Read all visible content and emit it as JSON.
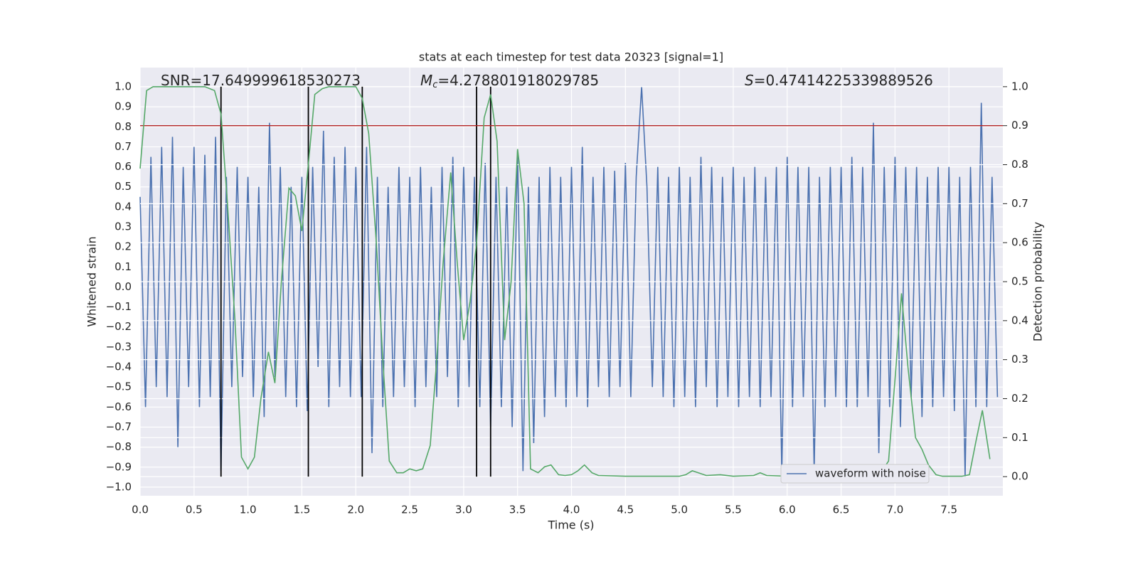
{
  "chart_data": {
    "type": "line",
    "title": "stats at each timestep for test data 20323 [signal=1]",
    "xlabel": "Time (s)",
    "ylabel": "Whitened strain",
    "y2label": "Detection probability",
    "annotations": [
      {
        "text": "SNR=17.649999618530273"
      },
      {
        "symbol": "M",
        "sub": "c",
        "text": "=4.278801918029785"
      },
      {
        "symbol": "S",
        "text": "=0.47414225339889526"
      }
    ],
    "xlim": [
      0,
      8.0
    ],
    "ylim": [
      -1.043,
      1.096
    ],
    "y2lim": [
      -0.049,
      1.049
    ],
    "xticks": [
      {
        "value": 0,
        "label": "0.0"
      },
      {
        "value": 0.5,
        "label": "0.5"
      },
      {
        "value": 1,
        "label": "1.0"
      },
      {
        "value": 1.5,
        "label": "1.5"
      },
      {
        "value": 2,
        "label": "2.0"
      },
      {
        "value": 2.5,
        "label": "2.5"
      },
      {
        "value": 3,
        "label": "3.0"
      },
      {
        "value": 3.5,
        "label": "3.5"
      },
      {
        "value": 4,
        "label": "4.0"
      },
      {
        "value": 4.5,
        "label": "4.5"
      },
      {
        "value": 5,
        "label": "5.0"
      },
      {
        "value": 5.5,
        "label": "5.5"
      },
      {
        "value": 6,
        "label": "6.0"
      },
      {
        "value": 6.5,
        "label": "6.5"
      },
      {
        "value": 7,
        "label": "7.0"
      },
      {
        "value": 7.5,
        "label": "7.5"
      }
    ],
    "yticks": [
      {
        "value": -1,
        "label": "−1.0"
      },
      {
        "value": -0.9,
        "label": "−0.9"
      },
      {
        "value": -0.8,
        "label": "−0.8"
      },
      {
        "value": -0.7,
        "label": "−0.7"
      },
      {
        "value": -0.6,
        "label": "−0.6"
      },
      {
        "value": -0.5,
        "label": "−0.5"
      },
      {
        "value": -0.4,
        "label": "−0.4"
      },
      {
        "value": -0.3,
        "label": "−0.3"
      },
      {
        "value": -0.2,
        "label": "−0.2"
      },
      {
        "value": -0.1,
        "label": "−0.1"
      },
      {
        "value": 0,
        "label": "0.0"
      },
      {
        "value": 0.1,
        "label": "0.1"
      },
      {
        "value": 0.2,
        "label": "0.2"
      },
      {
        "value": 0.3,
        "label": "0.3"
      },
      {
        "value": 0.4,
        "label": "0.4"
      },
      {
        "value": 0.5,
        "label": "0.5"
      },
      {
        "value": 0.6,
        "label": "0.6"
      },
      {
        "value": 0.7,
        "label": "0.7"
      },
      {
        "value": 0.8,
        "label": "0.8"
      },
      {
        "value": 0.9,
        "label": "0.9"
      },
      {
        "value": 1,
        "label": "1.0"
      }
    ],
    "y2ticks": [
      {
        "value": 0,
        "label": "0.0"
      },
      {
        "value": 0.1,
        "label": "0.1"
      },
      {
        "value": 0.2,
        "label": "0.2"
      },
      {
        "value": 0.3,
        "label": "0.3"
      },
      {
        "value": 0.4,
        "label": "0.4"
      },
      {
        "value": 0.5,
        "label": "0.5"
      },
      {
        "value": 0.6,
        "label": "0.6"
      },
      {
        "value": 0.7,
        "label": "0.7"
      },
      {
        "value": 0.8,
        "label": "0.8"
      },
      {
        "value": 0.9,
        "label": "0.9"
      },
      {
        "value": 1,
        "label": "1.0"
      }
    ],
    "grid": true,
    "legend": "lower right",
    "series": [
      {
        "name": "waveform with noise",
        "color": "#4c72b0",
        "x": [
          0,
          0.05,
          0.1,
          0.15,
          0.2,
          0.25,
          0.3,
          0.35,
          0.4,
          0.45,
          0.5,
          0.55,
          0.6,
          0.65,
          0.7,
          0.75,
          0.8,
          0.85,
          0.9,
          0.95,
          1,
          1.05,
          1.1,
          1.15,
          1.2,
          1.25,
          1.3,
          1.35,
          1.4,
          1.45,
          1.5,
          1.55,
          1.6,
          1.65,
          1.7,
          1.75,
          1.8,
          1.85,
          1.9,
          1.95,
          2,
          2.05,
          2.1,
          2.15,
          2.2,
          2.25,
          2.3,
          2.35,
          2.4,
          2.45,
          2.5,
          2.55,
          2.6,
          2.65,
          2.7,
          2.75,
          2.8,
          2.85,
          2.9,
          2.95,
          3,
          3.05,
          3.1,
          3.15,
          3.2,
          3.25,
          3.3,
          3.35,
          3.4,
          3.45,
          3.5,
          3.55,
          3.6,
          3.65,
          3.7,
          3.75,
          3.8,
          3.85,
          3.9,
          3.95,
          4,
          4.05,
          4.1,
          4.15,
          4.2,
          4.25,
          4.3,
          4.35,
          4.4,
          4.45,
          4.5,
          4.55,
          4.6,
          4.65,
          4.7,
          4.75,
          4.8,
          4.85,
          4.9,
          4.95,
          5,
          5.05,
          5.1,
          5.15,
          5.2,
          5.25,
          5.3,
          5.35,
          5.4,
          5.45,
          5.5,
          5.55,
          5.6,
          5.65,
          5.7,
          5.75,
          5.8,
          5.85,
          5.9,
          5.95,
          6,
          6.05,
          6.1,
          6.15,
          6.2,
          6.25,
          6.3,
          6.35,
          6.4,
          6.45,
          6.5,
          6.55,
          6.6,
          6.65,
          6.7,
          6.75,
          6.8,
          6.85,
          6.9,
          6.95,
          7,
          7.05,
          7.1,
          7.15,
          7.2,
          7.25,
          7.3,
          7.35,
          7.4,
          7.45,
          7.5,
          7.55,
          7.6,
          7.65,
          7.7,
          7.75,
          7.8,
          7.85,
          7.9,
          7.95
        ],
        "values": [
          0.45,
          -0.6,
          0.65,
          -0.5,
          0.7,
          -0.55,
          0.75,
          -0.8,
          0.6,
          -0.5,
          0.7,
          -0.6,
          0.66,
          -0.55,
          0.75,
          -0.92,
          0.55,
          -0.5,
          0.6,
          -0.45,
          0.55,
          -0.55,
          0.5,
          -0.65,
          0.82,
          -0.45,
          0.6,
          -0.55,
          0.5,
          -0.6,
          0.55,
          -0.62,
          0.6,
          -0.4,
          0.78,
          -0.6,
          0.65,
          -0.5,
          0.7,
          -0.55,
          0.6,
          -0.55,
          0.7,
          -0.83,
          0.55,
          -0.6,
          0.5,
          -0.55,
          0.6,
          -0.5,
          0.55,
          -0.6,
          0.6,
          -0.5,
          0.5,
          -0.55,
          0.6,
          -0.45,
          0.65,
          -0.6,
          0.6,
          -0.5,
          0.55,
          -0.6,
          0.62,
          -0.7,
          0.55,
          -0.6,
          0.5,
          -0.7,
          0.68,
          -0.92,
          0.5,
          -0.78,
          0.55,
          -0.65,
          0.6,
          -0.55,
          0.55,
          -0.6,
          0.6,
          -0.55,
          0.7,
          -0.6,
          0.55,
          -0.5,
          0.6,
          -0.55,
          0.58,
          -0.5,
          0.62,
          -0.55,
          0.55,
          1.0,
          0.5,
          -0.5,
          0.6,
          -0.55,
          0.55,
          -0.6,
          0.6,
          -0.55,
          0.55,
          -0.6,
          0.65,
          -0.5,
          0.6,
          -0.6,
          0.55,
          -0.55,
          0.6,
          -0.6,
          0.55,
          -0.55,
          0.6,
          -0.6,
          0.55,
          -0.55,
          0.6,
          -0.93,
          0.65,
          -0.6,
          0.6,
          -0.55,
          0.6,
          -0.92,
          0.55,
          -0.6,
          0.6,
          -0.55,
          0.6,
          -0.6,
          0.65,
          -0.6,
          0.6,
          -0.55,
          0.82,
          -0.83,
          0.6,
          -0.6,
          0.65,
          -0.7,
          0.6,
          -0.55,
          0.6,
          -0.65,
          0.55,
          -0.6,
          0.6,
          -0.55,
          0.6,
          -0.62,
          0.55,
          -0.95,
          0.6,
          -0.6,
          0.92,
          -0.6,
          0.55,
          -0.55
        ]
      },
      {
        "color": "#55a868",
        "axis": "y2",
        "x": [
          0,
          0.06,
          0.12,
          0.6,
          0.69,
          0.75,
          0.81,
          0.88,
          0.94,
          1.0,
          1.06,
          1.12,
          1.19,
          1.25,
          1.31,
          1.38,
          1.44,
          1.5,
          1.56,
          1.62,
          1.69,
          1.75,
          2.0,
          2.06,
          2.12,
          2.19,
          2.25,
          2.31,
          2.38,
          2.44,
          2.5,
          2.56,
          2.62,
          2.69,
          2.75,
          2.81,
          2.88,
          2.94,
          3.0,
          3.06,
          3.12,
          3.19,
          3.25,
          3.31,
          3.38,
          3.44,
          3.5,
          3.56,
          3.62,
          3.69,
          3.75,
          3.81,
          3.88,
          3.94,
          4.0,
          4.06,
          4.12,
          4.19,
          4.25,
          4.5,
          5.0,
          5.06,
          5.12,
          5.25,
          5.38,
          5.5,
          5.69,
          5.75,
          5.81,
          6.0,
          6.5,
          6.75,
          6.88,
          6.94,
          7.0,
          7.06,
          7.12,
          7.19,
          7.25,
          7.31,
          7.38,
          7.44,
          7.62,
          7.69,
          7.75,
          7.81,
          7.88
        ],
        "values": [
          0.79,
          0.99,
          1.0,
          1.0,
          0.99,
          0.93,
          0.7,
          0.4,
          0.05,
          0.02,
          0.05,
          0.2,
          0.32,
          0.24,
          0.5,
          0.74,
          0.72,
          0.63,
          0.8,
          0.98,
          0.995,
          1.0,
          1.0,
          0.97,
          0.88,
          0.6,
          0.3,
          0.04,
          0.01,
          0.01,
          0.02,
          0.015,
          0.02,
          0.08,
          0.3,
          0.55,
          0.78,
          0.55,
          0.35,
          0.45,
          0.6,
          0.92,
          0.98,
          0.86,
          0.35,
          0.5,
          0.84,
          0.7,
          0.02,
          0.01,
          0.025,
          0.03,
          0.005,
          0.003,
          0.005,
          0.015,
          0.03,
          0.01,
          0.003,
          0.001,
          0.001,
          0.005,
          0.015,
          0.003,
          0.005,
          0.001,
          0.003,
          0.01,
          0.003,
          0.001,
          0.001,
          0.003,
          0.015,
          0.04,
          0.25,
          0.47,
          0.28,
          0.1,
          0.07,
          0.03,
          0.005,
          0.001,
          0.001,
          0.005,
          0.09,
          0.17,
          0.045
        ]
      }
    ],
    "vlines": [
      0.75,
      1.56,
      2.06,
      3.12,
      3.25
    ],
    "vline_color": "#000000",
    "threshold": 0.9,
    "threshold_color": "#b22222"
  }
}
